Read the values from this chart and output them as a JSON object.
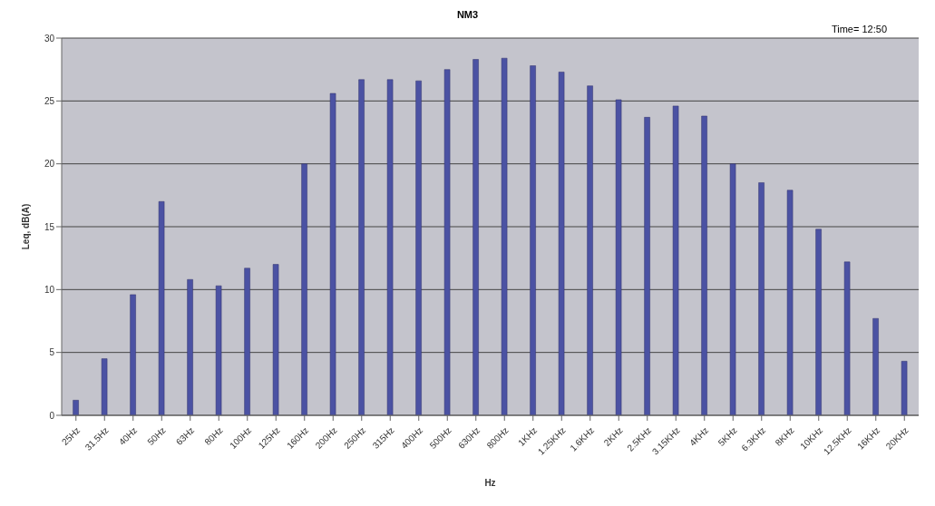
{
  "chart_data": {
    "type": "bar",
    "title": "NM3",
    "xlabel": "Hz",
    "ylabel": "Leq, dB(A)",
    "annotations": [
      "Time= 12:50"
    ],
    "categories": [
      "25Hz",
      "31.5Hz",
      "40Hz",
      "50Hz",
      "63Hz",
      "80Hz",
      "100Hz",
      "125Hz",
      "160Hz",
      "200Hz",
      "250Hz",
      "315Hz",
      "400Hz",
      "500Hz",
      "630Hz",
      "800Hz",
      "1KHz",
      "1.25KHz",
      "1.6KHz",
      "2KHz",
      "2.5KHz",
      "3.15KHz",
      "4KHz",
      "5KHz",
      "6.3KHz",
      "8KHz",
      "10KHz",
      "12.5KHz",
      "16KHz",
      "20KHz"
    ],
    "values": [
      1.2,
      4.5,
      9.6,
      17,
      10.8,
      10.3,
      11.7,
      12,
      20,
      25.6,
      26.7,
      26.7,
      26.6,
      27.5,
      28.3,
      28.4,
      27.8,
      27.3,
      26.2,
      25.1,
      23.7,
      24.6,
      23.8,
      20,
      18.5,
      17.9,
      14.8,
      12.2,
      7.7,
      4.3
    ],
    "color": "#4b52a3",
    "ylim": [
      0,
      30
    ],
    "yticks": [
      0,
      5,
      10,
      15,
      20,
      25,
      30
    ],
    "grid": "y",
    "legend": false
  }
}
